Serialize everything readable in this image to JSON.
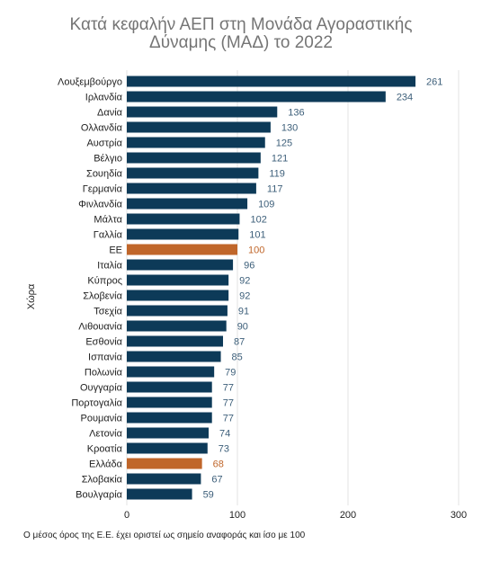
{
  "chart_data": {
    "type": "bar",
    "orientation": "horizontal",
    "title_lines": [
      "Κατά κεφαλήν ΑΕΠ στη Μονάδα Αγοραστικής",
      "Δύναμης (ΜΑΔ) το 2022"
    ],
    "ylabel": "Χώρα",
    "xlabel": "",
    "xlim": [
      0,
      300
    ],
    "xticks": [
      0,
      100,
      200,
      300
    ],
    "grid": true,
    "categories": [
      "Λουξεμβούργο",
      "Ιρλανδία",
      "Δανία",
      "Ολλανδία",
      "Αυστρία",
      "Βέλγιο",
      "Σουηδία",
      "Γερμανία",
      "Φινλανδία",
      "Μάλτα",
      "Γαλλία",
      "ΕΕ",
      "Ιταλία",
      "Κύπρος",
      "Σλοβενία",
      "Τσεχία",
      "Λιθουανία",
      "Εσθονία",
      "Ισπανία",
      "Πολωνία",
      "Ουγγαρία",
      "Πορτογαλία",
      "Ρουμανία",
      "Λετονία",
      "Κροατία",
      "Ελλάδα",
      "Σλοβακία",
      "Βουλγαρία"
    ],
    "values": [
      261,
      234,
      136,
      130,
      125,
      121,
      119,
      117,
      109,
      102,
      101,
      100,
      96,
      92,
      92,
      91,
      90,
      87,
      85,
      79,
      77,
      77,
      77,
      74,
      73,
      68,
      67,
      59
    ],
    "highlighted": [
      "ΕΕ",
      "Ελλάδα"
    ],
    "colors": {
      "bar": "#0d3a58",
      "highlight": "#c0662a",
      "value_label": "#3d5f7a",
      "highlight_label": "#c0662a",
      "grid": "#e3e3e3"
    }
  },
  "footnote": "Ο μέσος όρος της Ε.Ε. έχει οριστεί ως σημείο αναφοράς και ίσο με 100"
}
